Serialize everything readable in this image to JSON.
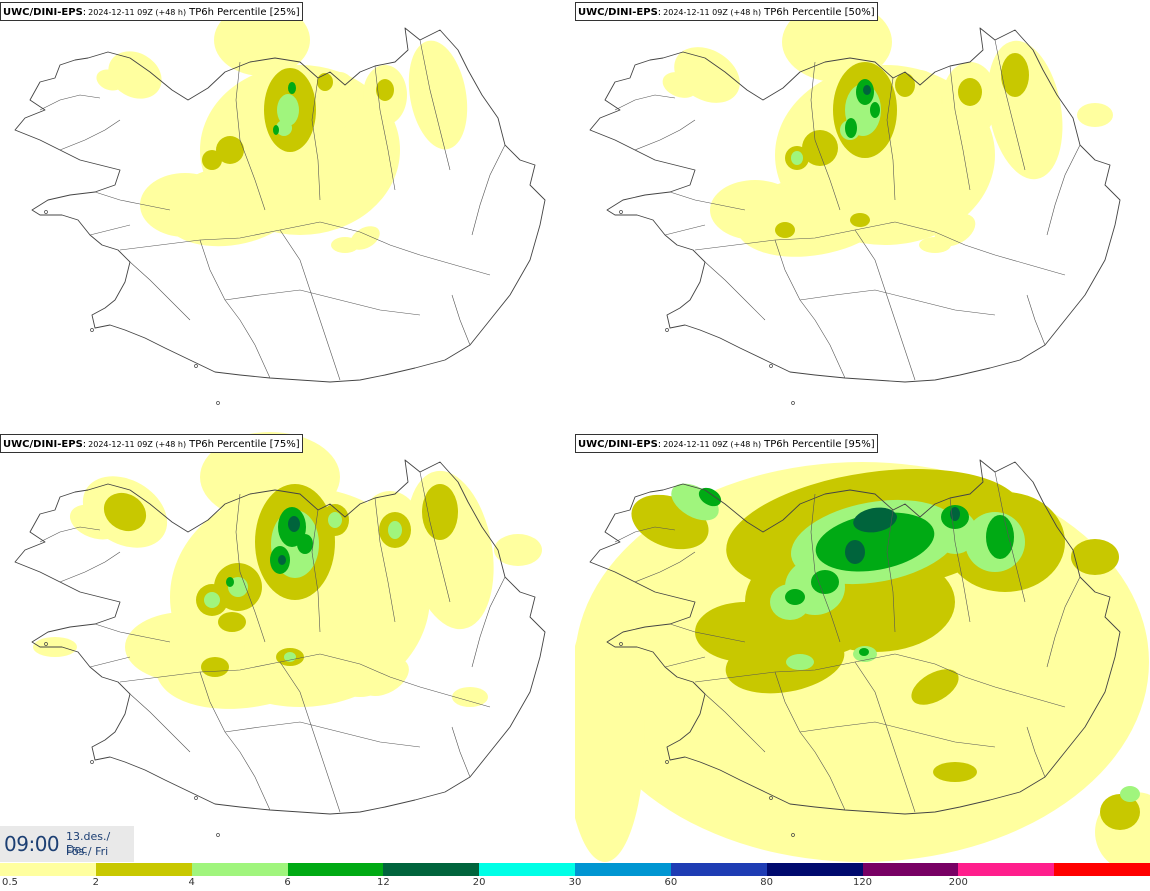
{
  "panels": [
    {
      "model": "UWC/DINI-EPS",
      "run": "2024-12-11 09Z (+48 h)",
      "param": "TP6h Percentile [25%]",
      "level": 0
    },
    {
      "model": "UWC/DINI-EPS",
      "run": "2024-12-11 09Z (+48 h)",
      "param": "TP6h Percentile [50%]",
      "level": 1
    },
    {
      "model": "UWC/DINI-EPS",
      "run": "2024-12-11 09Z (+48 h)",
      "param": "TP6h Percentile [75%]",
      "level": 2
    },
    {
      "model": "UWC/DINI-EPS",
      "run": "2024-12-11 09Z (+48 h)",
      "param": "TP6h Percentile [95%]",
      "level": 3
    }
  ],
  "valid_time": {
    "hour": "09:00",
    "date": "13.des./ Dec",
    "day": "Fös./ Fri"
  },
  "legend": {
    "labels": [
      "0.5",
      "2",
      "4",
      "6",
      "12",
      "20",
      "30",
      "60",
      "80",
      "120",
      "200"
    ],
    "colors": [
      "#ffff9f",
      "#c8c800",
      "#a0f57d",
      "#00aa14",
      "#00643c",
      "#00ffe6",
      "#0096d2",
      "#1e3cb4",
      "#000a6e",
      "#780064",
      "#ff1e8c",
      "#ff0000"
    ]
  },
  "colors": {
    "p1": "#ffff9f",
    "p2": "#c8c800",
    "p4": "#a0f57d",
    "p6": "#00aa14",
    "p12": "#00643c",
    "ocean": "#ffffff",
    "outline": "#444444",
    "accent": "#1c3f73"
  }
}
